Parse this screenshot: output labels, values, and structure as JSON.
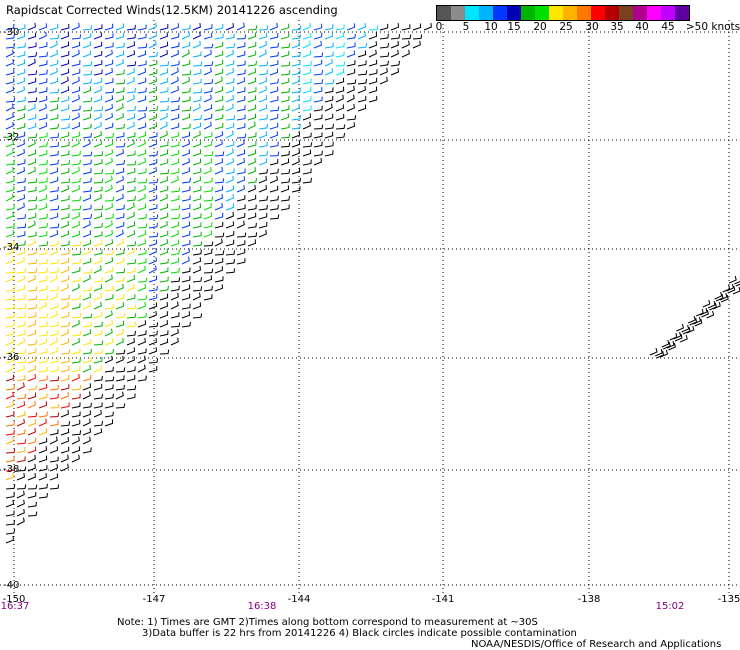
{
  "title": "Rapidscat Corrected Winds(12.5KM) 20141226 ascending",
  "legend": {
    "colors": [
      "#555555",
      "#8c8c8c",
      "#00e5ff",
      "#00b4ff",
      "#0038ff",
      "#0000b4",
      "#00b400",
      "#00e000",
      "#ffe600",
      "#ffb400",
      "#ff7800",
      "#ff0000",
      "#b40000",
      "#784020",
      "#b00090",
      "#ff00ff",
      "#c000ff",
      "#6000a0"
    ],
    "labels": [
      "0",
      "5",
      "10",
      "15",
      "20",
      "25",
      "30",
      "35",
      "40",
      "45",
      ">50 knots"
    ]
  },
  "axes": {
    "lat_labels": [
      "-30",
      "-32",
      "-34",
      "-36",
      "-38",
      "-40"
    ],
    "lon_labels": [
      "-150",
      "-147",
      "-144",
      "-141",
      "-138",
      "-135"
    ]
  },
  "times": [
    "16:37",
    "16:38",
    "15:02"
  ],
  "notes": {
    "line1": "Note: 1) Times are GMT 2)Times along bottom correspond to measurement at ~30S",
    "line2": "3)Data buffer is 22 hrs from 20141226 4) Black circles indicate possible contamination",
    "credit": "NOAA/NESDIS/Office of Research and Applications"
  }
}
